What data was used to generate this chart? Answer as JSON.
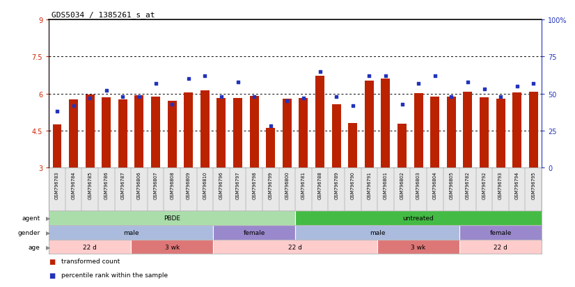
{
  "title": "GDS5034 / 1385261_s_at",
  "samples": [
    "GSM796783",
    "GSM796784",
    "GSM796785",
    "GSM796786",
    "GSM796787",
    "GSM796806",
    "GSM796807",
    "GSM796808",
    "GSM796809",
    "GSM796810",
    "GSM796796",
    "GSM796797",
    "GSM796798",
    "GSM796799",
    "GSM796800",
    "GSM796781",
    "GSM796788",
    "GSM796789",
    "GSM796790",
    "GSM796791",
    "GSM796801",
    "GSM796802",
    "GSM796803",
    "GSM796804",
    "GSM796805",
    "GSM796782",
    "GSM796792",
    "GSM796793",
    "GSM796794",
    "GSM796795"
  ],
  "bar_heights": [
    4.75,
    5.75,
    5.95,
    5.85,
    5.75,
    5.92,
    5.88,
    5.72,
    6.05,
    6.12,
    5.82,
    5.82,
    5.9,
    4.62,
    5.78,
    5.82,
    6.72,
    5.58,
    4.82,
    6.52,
    6.62,
    4.78,
    6.02,
    5.88,
    5.88,
    6.08,
    5.85,
    5.78,
    6.05,
    6.08
  ],
  "percentile_ranks": [
    38,
    42,
    47,
    52,
    48,
    48,
    57,
    43,
    60,
    62,
    48,
    58,
    48,
    28,
    45,
    47,
    65,
    48,
    42,
    62,
    62,
    43,
    57,
    62,
    48,
    58,
    53,
    48,
    55,
    57
  ],
  "ylim_left": [
    3,
    9
  ],
  "yticks_left": [
    3,
    4.5,
    6,
    7.5,
    9
  ],
  "ytick_labels_left": [
    "3",
    "4.5",
    "6",
    "7.5",
    "9"
  ],
  "yticks_right": [
    0,
    25,
    50,
    75,
    100
  ],
  "ytick_labels_right": [
    "0",
    "25",
    "50",
    "75",
    "100%"
  ],
  "hlines": [
    4.5,
    6.0,
    7.5
  ],
  "bar_color": "#BB2200",
  "dot_color": "#2233BB",
  "bar_bottom": 3.0,
  "agent_groups": [
    {
      "label": "PBDE",
      "start": 0,
      "end": 15,
      "color": "#AADDAA"
    },
    {
      "label": "untreated",
      "start": 15,
      "end": 30,
      "color": "#44BB44"
    }
  ],
  "gender_groups": [
    {
      "label": "male",
      "start": 0,
      "end": 10,
      "color": "#AABBDD"
    },
    {
      "label": "female",
      "start": 10,
      "end": 15,
      "color": "#9988CC"
    },
    {
      "label": "male",
      "start": 15,
      "end": 25,
      "color": "#AABBDD"
    },
    {
      "label": "female",
      "start": 25,
      "end": 30,
      "color": "#9988CC"
    }
  ],
  "age_groups": [
    {
      "label": "22 d",
      "start": 0,
      "end": 5,
      "color": "#FFCCCC"
    },
    {
      "label": "3 wk",
      "start": 5,
      "end": 10,
      "color": "#DD7777"
    },
    {
      "label": "22 d",
      "start": 10,
      "end": 16,
      "color": "#FFCCCC"
    },
    {
      "label": "22 d",
      "start": 15,
      "end": 21,
      "color": "#FFCCCC"
    },
    {
      "label": "3 wk",
      "start": 20,
      "end": 25,
      "color": "#DD7777"
    },
    {
      "label": "22 d",
      "start": 25,
      "end": 30,
      "color": "#FFCCCC"
    }
  ],
  "legend_items": [
    {
      "color": "#BB2200",
      "label": "transformed count",
      "marker": "s"
    },
    {
      "color": "#2233BB",
      "label": "percentile rank within the sample",
      "marker": "s"
    }
  ]
}
